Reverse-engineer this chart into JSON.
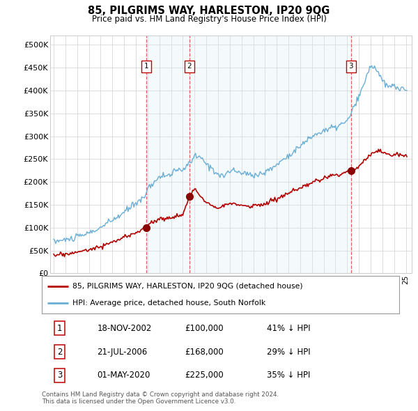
{
  "title": "85, PILGRIMS WAY, HARLESTON, IP20 9QG",
  "subtitle": "Price paid vs. HM Land Registry's House Price Index (HPI)",
  "legend_line1": "85, PILGRIMS WAY, HARLESTON, IP20 9QG (detached house)",
  "legend_line2": "HPI: Average price, detached house, South Norfolk",
  "footnote1": "Contains HM Land Registry data © Crown copyright and database right 2024.",
  "footnote2": "This data is licensed under the Open Government Licence v3.0.",
  "sales": [
    {
      "label": "1",
      "date_num": 2002.88,
      "price": 100000
    },
    {
      "label": "2",
      "date_num": 2006.55,
      "price": 168000
    },
    {
      "label": "3",
      "date_num": 2020.33,
      "price": 225000
    }
  ],
  "table_rows": [
    [
      "1",
      "18-NOV-2002",
      "£100,000",
      "41% ↓ HPI"
    ],
    [
      "2",
      "21-JUL-2006",
      "£168,000",
      "29% ↓ HPI"
    ],
    [
      "3",
      "01-MAY-2020",
      "£225,000",
      "35% ↓ HPI"
    ]
  ],
  "hpi_color": "#6aaed6",
  "price_color": "#b30000",
  "vline_color": "#e06060",
  "shade_color": "#d6e8f5",
  "sale_dot_color": "#8b0000",
  "background_color": "#ffffff",
  "ylim": [
    0,
    520000
  ],
  "yticks": [
    0,
    50000,
    100000,
    150000,
    200000,
    250000,
    300000,
    350000,
    400000,
    450000,
    500000
  ]
}
